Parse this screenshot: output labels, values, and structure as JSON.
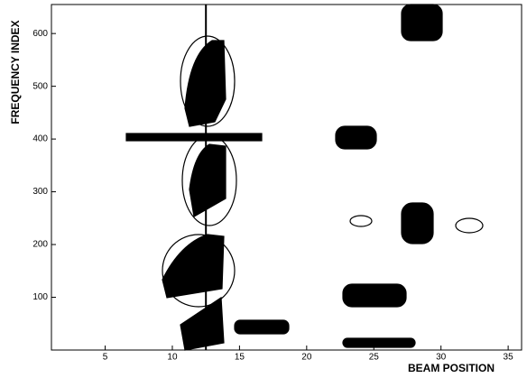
{
  "chart_data": {
    "type": "contour",
    "x_label": "BEAM POSITION",
    "y_label": "FREQUENCY INDEX",
    "xlim": [
      1,
      36
    ],
    "ylim": [
      0,
      655
    ],
    "xticks": [
      5,
      10,
      15,
      20,
      25,
      30,
      35
    ],
    "yticks": [
      100,
      200,
      300,
      400,
      500,
      600
    ],
    "vertical_line_x": 12.5,
    "color": "#000000"
  }
}
